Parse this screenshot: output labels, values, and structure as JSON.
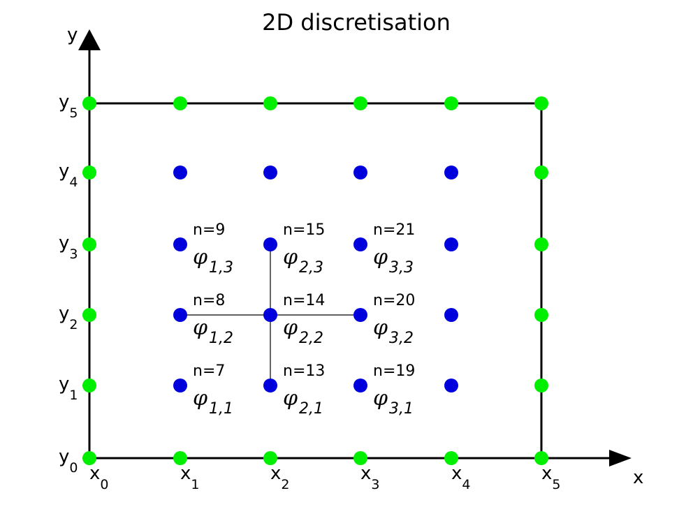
{
  "title": "2D discretisation",
  "axes": {
    "x_label": "x",
    "y_label": "y"
  },
  "x_ticks": [
    {
      "base": "x",
      "sub": "0"
    },
    {
      "base": "x",
      "sub": "1"
    },
    {
      "base": "x",
      "sub": "2"
    },
    {
      "base": "x",
      "sub": "3"
    },
    {
      "base": "x",
      "sub": "4"
    },
    {
      "base": "x",
      "sub": "5"
    }
  ],
  "y_ticks": [
    {
      "base": "y",
      "sub": "0"
    },
    {
      "base": "y",
      "sub": "1"
    },
    {
      "base": "y",
      "sub": "2"
    },
    {
      "base": "y",
      "sub": "3"
    },
    {
      "base": "y",
      "sub": "4"
    },
    {
      "base": "y",
      "sub": "5"
    }
  ],
  "grid": {
    "nx": 6,
    "ny": 6
  },
  "colors": {
    "boundary_node": "#00ee00",
    "interior_node": "#0000dd",
    "lines": "#000000"
  },
  "stencil": {
    "center": [
      2,
      2
    ],
    "neighbors": [
      [
        1,
        2
      ],
      [
        3,
        2
      ],
      [
        2,
        1
      ],
      [
        2,
        3
      ]
    ]
  },
  "node_labels": [
    {
      "i": 1,
      "j": 3,
      "n": "n=9",
      "phi": "φ",
      "sub": "1,3"
    },
    {
      "i": 2,
      "j": 3,
      "n": "n=15",
      "phi": "φ",
      "sub": "2,3"
    },
    {
      "i": 3,
      "j": 3,
      "n": "n=21",
      "phi": "φ",
      "sub": "3,3"
    },
    {
      "i": 1,
      "j": 2,
      "n": "n=8",
      "phi": "φ",
      "sub": "1,2"
    },
    {
      "i": 2,
      "j": 2,
      "n": "n=14",
      "phi": "φ",
      "sub": "2,2"
    },
    {
      "i": 3,
      "j": 2,
      "n": "n=20",
      "phi": "φ",
      "sub": "3,2"
    },
    {
      "i": 1,
      "j": 1,
      "n": "n=7",
      "phi": "φ",
      "sub": "1,1"
    },
    {
      "i": 2,
      "j": 1,
      "n": "n=13",
      "phi": "φ",
      "sub": "2,1"
    },
    {
      "i": 3,
      "j": 1,
      "n": "n=19",
      "phi": "φ",
      "sub": "3,1"
    }
  ]
}
